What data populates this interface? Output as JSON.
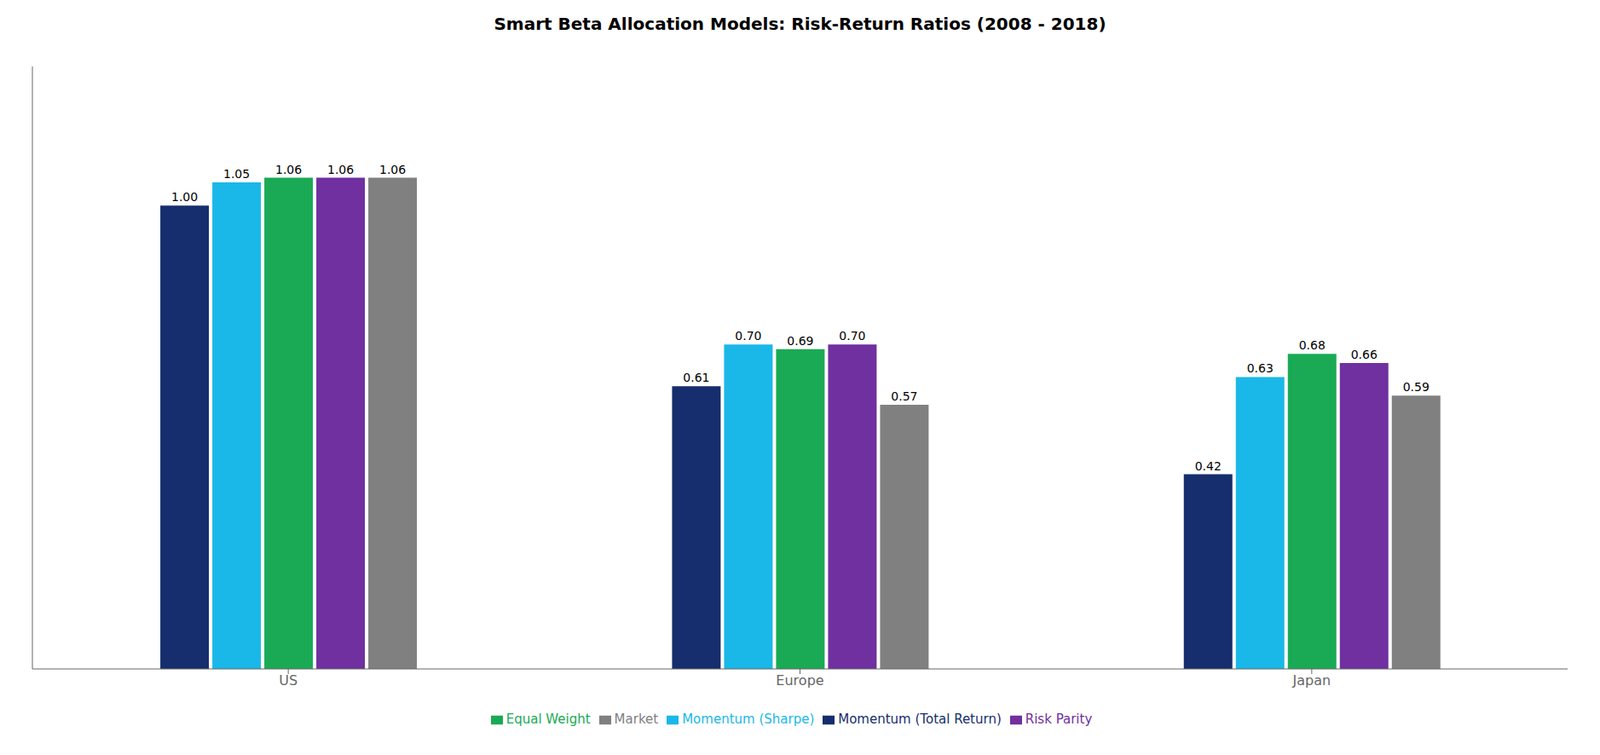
{
  "chart_data": {
    "type": "bar",
    "title": "Smart Beta Allocation Models: Risk-Return Ratios (2008 - 2018)",
    "categories": [
      "US",
      "Europe",
      "Japan"
    ],
    "series": [
      {
        "name": "Momentum (Total Return)",
        "color": "#162d6e",
        "values": [
          1.0,
          0.61,
          0.42
        ],
        "value_labels": [
          "1.00",
          "0.61",
          "0.42"
        ]
      },
      {
        "name": "Momentum (Sharpe)",
        "color": "#1ab8e8",
        "values": [
          1.05,
          0.7,
          0.63
        ],
        "value_labels": [
          "1.05",
          "0.70",
          "0.63"
        ]
      },
      {
        "name": "Equal Weight",
        "color": "#1aaa55",
        "values": [
          1.06,
          0.69,
          0.68
        ],
        "value_labels": [
          "1.06",
          "0.69",
          "0.68"
        ]
      },
      {
        "name": "Risk Parity",
        "color": "#7030a0",
        "values": [
          1.06,
          0.7,
          0.66
        ],
        "value_labels": [
          "1.06",
          "0.70",
          "0.66"
        ]
      },
      {
        "name": "Market",
        "color": "#808080",
        "values": [
          1.06,
          0.57,
          0.59
        ],
        "value_labels": [
          "1.06",
          "0.57",
          "0.59"
        ]
      }
    ],
    "ylim": [
      0,
      1.3
    ],
    "grid": false,
    "legend": "bottom",
    "data_labels": true,
    "tick_labels": "x"
  }
}
